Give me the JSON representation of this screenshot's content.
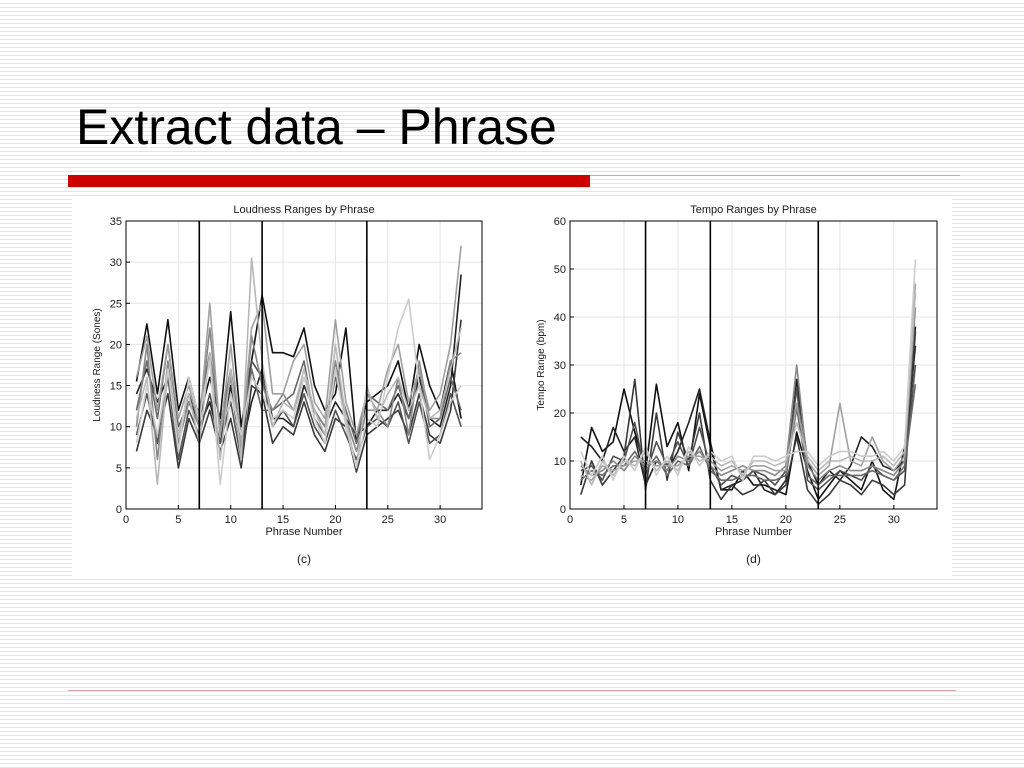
{
  "slide": {
    "title": "Extract data – Phrase",
    "accent_color": "#cc0000",
    "rule_color": "#d8a8a8",
    "background": "white with thin horizontal gray stripes"
  },
  "chart_data": [
    {
      "type": "line",
      "panel_label": "(c)",
      "title": "Loudness Ranges by Phrase",
      "xlabel": "Phrase Number",
      "ylabel": "Loudness Range (Sones)",
      "xlim": [
        0,
        34
      ],
      "ylim": [
        0,
        35
      ],
      "xticks": [
        0,
        5,
        10,
        15,
        20,
        25,
        30
      ],
      "yticks": [
        0,
        5,
        10,
        15,
        20,
        25,
        30,
        35
      ],
      "grid": true,
      "vertical_markers": [
        7,
        13,
        23
      ],
      "x": [
        1,
        2,
        3,
        4,
        5,
        6,
        7,
        8,
        9,
        10,
        11,
        12,
        13,
        14,
        15,
        16,
        17,
        18,
        19,
        20,
        21,
        22,
        23,
        24,
        25,
        26,
        27,
        28,
        29,
        30,
        31,
        32
      ],
      "series": [
        {
          "color": "#111111",
          "values": [
            15.5,
            22.5,
            14,
            23,
            12,
            16,
            11,
            16,
            11,
            24,
            10,
            18,
            26,
            19,
            19,
            18.5,
            22,
            15,
            12,
            14,
            22,
            8,
            13,
            14,
            15,
            18,
            12,
            20,
            15,
            12,
            18,
            11
          ]
        },
        {
          "color": "#222222",
          "values": [
            14,
            17,
            13,
            16,
            9,
            14,
            10,
            13,
            8,
            15,
            7,
            13,
            17,
            11,
            11,
            10,
            15,
            12,
            10,
            13,
            11,
            9,
            10,
            12,
            12,
            14,
            11,
            16,
            11,
            10,
            15,
            28.5
          ]
        },
        {
          "color": "#383838",
          "values": [
            7,
            12,
            9,
            14,
            5,
            11,
            8,
            12,
            7,
            11,
            5,
            15,
            14,
            8,
            10,
            9,
            13,
            9,
            7,
            11,
            10,
            4.5,
            9,
            10,
            11,
            12,
            9,
            14,
            9,
            8,
            12,
            23
          ]
        },
        {
          "color": "#505050",
          "values": [
            9,
            14,
            8,
            16,
            6,
            12,
            9,
            14,
            8,
            13,
            6,
            18,
            16,
            10,
            12,
            10,
            14,
            10,
            8,
            12,
            9,
            6,
            10,
            11,
            10,
            13,
            8,
            13,
            8,
            9,
            14,
            10
          ]
        },
        {
          "color": "#686868",
          "values": [
            12,
            18,
            11,
            20,
            10,
            13,
            12,
            19,
            10,
            17,
            9,
            17,
            12,
            12,
            13,
            14,
            18,
            11,
            9,
            16,
            12,
            8,
            14,
            13,
            12,
            15,
            11,
            17,
            10,
            11,
            16,
            12
          ]
        },
        {
          "color": "#888888",
          "values": [
            10,
            20,
            6,
            18,
            8,
            13,
            10,
            22,
            9,
            16,
            7,
            21,
            15,
            12,
            14,
            12,
            16,
            12,
            10,
            18,
            11,
            7,
            12,
            12,
            10,
            16,
            9,
            18,
            11,
            11,
            18,
            19
          ]
        },
        {
          "color": "#a0a0a0",
          "values": [
            16,
            21,
            12,
            20,
            11,
            15,
            10,
            25,
            9,
            20,
            8,
            22,
            25,
            14,
            14,
            18,
            20,
            13,
            11,
            23,
            13,
            9,
            14,
            12,
            17,
            20,
            13,
            17,
            12,
            14,
            20,
            32
          ]
        },
        {
          "color": "#b8b8b8",
          "values": [
            11,
            16,
            3,
            17,
            9,
            14,
            8,
            19,
            6,
            17,
            6,
            30.5,
            18,
            10,
            13,
            12,
            17,
            12,
            9,
            20,
            11,
            5,
            15,
            11,
            14,
            16,
            12,
            15,
            11,
            12,
            17,
            22
          ]
        },
        {
          "color": "#cccccc",
          "values": [
            8,
            15,
            9,
            17,
            7,
            16,
            11,
            18,
            3,
            14,
            9,
            16,
            14,
            11,
            12,
            11,
            16,
            11,
            8,
            17,
            10,
            5,
            11,
            10,
            16,
            22,
            25.5,
            15,
            6,
            9,
            13,
            15
          ]
        }
      ]
    },
    {
      "type": "line",
      "panel_label": "(d)",
      "title": "Tempo Ranges by Phrase",
      "xlabel": "Phrase Number",
      "ylabel": "Tempo Range (bpm)",
      "xlim": [
        0,
        34
      ],
      "ylim": [
        0,
        60
      ],
      "xticks": [
        0,
        5,
        10,
        15,
        20,
        25,
        30
      ],
      "yticks": [
        0,
        10,
        20,
        30,
        40,
        50,
        60
      ],
      "grid": true,
      "vertical_markers": [
        7,
        13,
        23
      ],
      "x": [
        1,
        2,
        3,
        4,
        5,
        6,
        7,
        8,
        9,
        10,
        11,
        12,
        13,
        14,
        15,
        16,
        17,
        18,
        19,
        20,
        21,
        22,
        23,
        24,
        25,
        26,
        27,
        28,
        29,
        30,
        31,
        32
      ],
      "series": [
        {
          "color": "#111111",
          "values": [
            5,
            17,
            12,
            14,
            25,
            16,
            8,
            26,
            13,
            18,
            8,
            24,
            13,
            4,
            4,
            8,
            5,
            5,
            4,
            3,
            16,
            8,
            2,
            5,
            8,
            6,
            4,
            10,
            4,
            2,
            13,
            38
          ]
        },
        {
          "color": "#222222",
          "values": [
            15,
            13,
            10,
            17,
            12,
            15,
            5,
            10,
            8,
            12,
            18,
            25,
            14,
            4,
            5,
            6,
            8,
            4,
            3,
            6,
            27,
            10,
            5,
            8,
            6,
            9,
            15,
            13,
            9,
            8,
            10,
            34
          ]
        },
        {
          "color": "#383838",
          "values": [
            3,
            10,
            5,
            8,
            11,
            27,
            4,
            20,
            6,
            16,
            10,
            20,
            6,
            2,
            5,
            3,
            4,
            6,
            3,
            5,
            15,
            4,
            1,
            3,
            6,
            5,
            3,
            6,
            5,
            3,
            5,
            37
          ]
        },
        {
          "color": "#505050",
          "values": [
            8,
            9,
            6,
            11,
            10,
            18,
            7,
            14,
            9,
            14,
            9,
            17,
            9,
            5,
            7,
            6,
            8,
            7,
            5,
            8,
            25,
            6,
            4,
            6,
            8,
            7,
            6,
            9,
            7,
            6,
            8,
            30
          ]
        },
        {
          "color": "#686868",
          "values": [
            6,
            8,
            7,
            9,
            9,
            12,
            8,
            11,
            7,
            10,
            9,
            13,
            8,
            6,
            6,
            7,
            7,
            6,
            6,
            7,
            21,
            7,
            5,
            7,
            7,
            7,
            7,
            8,
            7,
            6,
            9,
            26
          ]
        },
        {
          "color": "#888888",
          "values": [
            9,
            7,
            8,
            10,
            8,
            11,
            9,
            10,
            8,
            11,
            10,
            12,
            9,
            7,
            8,
            9,
            8,
            8,
            7,
            9,
            30,
            9,
            6,
            8,
            9,
            8,
            8,
            9,
            8,
            7,
            10,
            42
          ]
        },
        {
          "color": "#a0a0a0",
          "values": [
            7,
            6,
            9,
            8,
            9,
            10,
            10,
            9,
            9,
            9,
            11,
            11,
            10,
            8,
            9,
            8,
            9,
            9,
            8,
            8,
            22,
            10,
            7,
            9,
            22,
            10,
            9,
            15,
            10,
            8,
            11,
            47
          ]
        },
        {
          "color": "#b8b8b8",
          "values": [
            10,
            5,
            10,
            7,
            10,
            9,
            12,
            8,
            10,
            8,
            12,
            10,
            11,
            9,
            10,
            7,
            10,
            10,
            9,
            10,
            18,
            11,
            8,
            10,
            10,
            11,
            10,
            10,
            11,
            9,
            12,
            45
          ]
        },
        {
          "color": "#cccccc",
          "values": [
            12,
            7,
            11,
            6,
            11,
            8,
            13,
            7,
            11,
            7,
            13,
            9,
            12,
            10,
            11,
            6,
            11,
            11,
            10,
            11,
            12,
            12,
            9,
            11,
            12,
            12,
            11,
            11,
            12,
            10,
            13,
            52
          ]
        }
      ]
    }
  ]
}
